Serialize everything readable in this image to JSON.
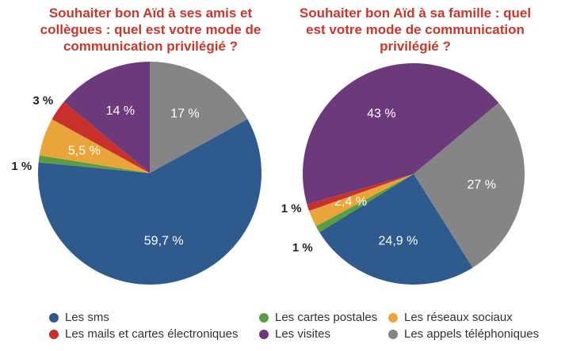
{
  "chart_data": [
    {
      "type": "pie",
      "title": "Souhaiter bon Aïd à ses amis et collègues : quel est votre mode de communication privilégié ?",
      "slices": [
        {
          "category": "Les appels téléphoniques",
          "value": 17,
          "label": "17 %"
        },
        {
          "category": "Les sms",
          "value": 59.7,
          "label": "59,7 %"
        },
        {
          "category": "Les cartes postales",
          "value": 1,
          "label": "1 %"
        },
        {
          "category": "Les réseaux sociaux",
          "value": 5.5,
          "label": "5,5 %"
        },
        {
          "category": "Les mails et cartes électroniques",
          "value": 3,
          "label": "3 %"
        },
        {
          "category": "Les visites",
          "value": 14,
          "label": "14 %"
        }
      ]
    },
    {
      "type": "pie",
      "title": "Souhaiter bon Aïd à sa famille : quel est votre mode de communication privilégié ?",
      "slices": [
        {
          "category": "Les appels téléphoniques",
          "value": 27,
          "label": "27 %"
        },
        {
          "category": "Les sms",
          "value": 24.9,
          "label": "24,9 %"
        },
        {
          "category": "Les cartes postales",
          "value": 1,
          "label": "1 %"
        },
        {
          "category": "Les réseaux sociaux",
          "value": 2.4,
          "label": "2,4 %"
        },
        {
          "category": "Les mails et cartes électroniques",
          "value": 1,
          "label": "1 %"
        },
        {
          "category": "Les visites",
          "value": 43,
          "label": "43 %"
        }
      ]
    }
  ],
  "legend": [
    {
      "label": "Les sms",
      "color": "#2e5a8e"
    },
    {
      "label": "Les cartes postales",
      "color": "#5a9e44"
    },
    {
      "label": "Les réseaux sociaux",
      "color": "#e9a43a"
    },
    {
      "label": "Les mails et cartes électroniques",
      "color": "#c9302c"
    },
    {
      "label": "Les visites",
      "color": "#6c3a7b"
    },
    {
      "label": "Les appels téléphoniques",
      "color": "#858585"
    }
  ],
  "legend_position": "bottom"
}
